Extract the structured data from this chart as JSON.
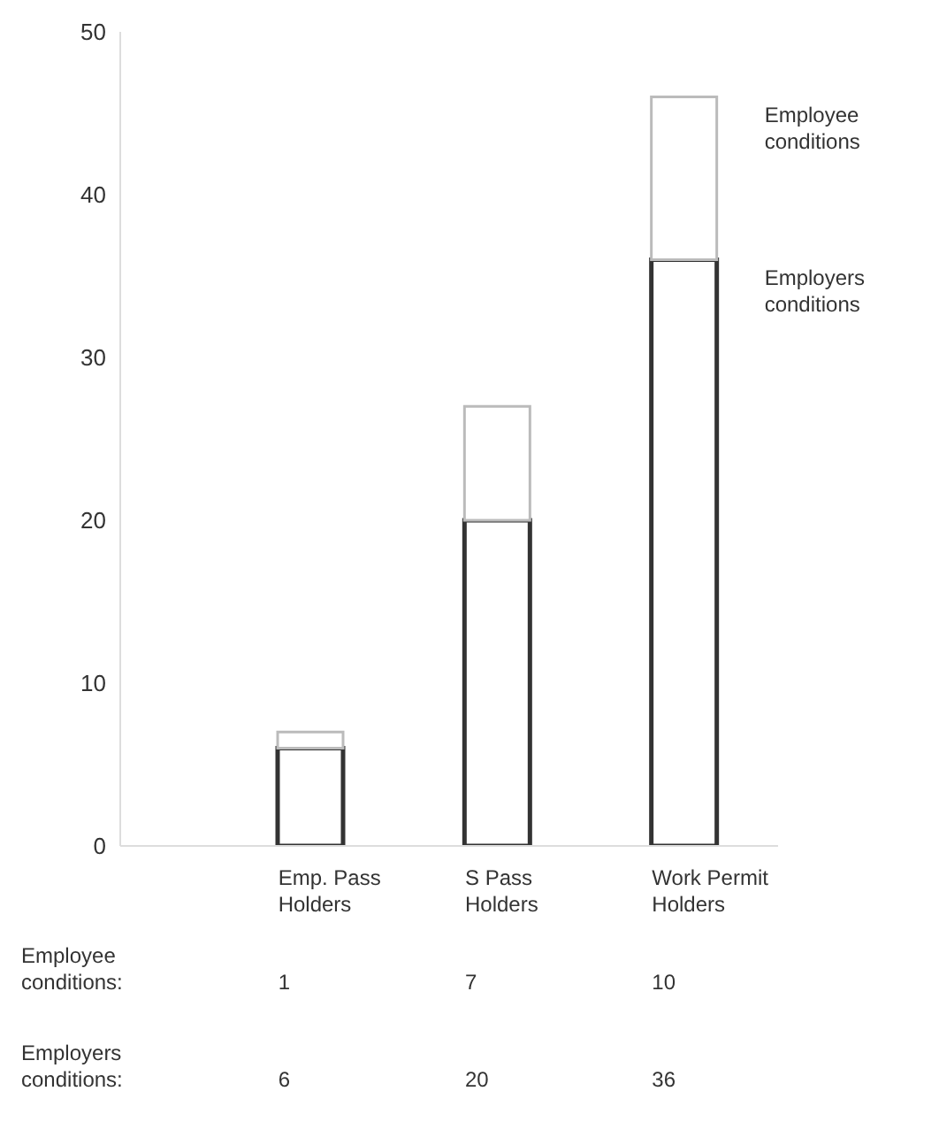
{
  "chart_data": {
    "type": "bar",
    "stacked": true,
    "categories": [
      "Emp. Pass Holders",
      "S Pass Holders",
      "Work Permit Holders"
    ],
    "series": [
      {
        "name": "Employers conditions",
        "color": "#333333",
        "values": [
          6,
          20,
          36
        ]
      },
      {
        "name": "Employee conditions",
        "color": "#bbbbbb",
        "values": [
          1,
          7,
          10
        ]
      }
    ],
    "ylim": [
      0,
      50
    ],
    "yticks": [
      0,
      10,
      20,
      30,
      40,
      50
    ],
    "grid": false,
    "legend": false,
    "data_labels": true,
    "annotations": [
      "Employee conditions:",
      "Employers conditions:"
    ]
  }
}
